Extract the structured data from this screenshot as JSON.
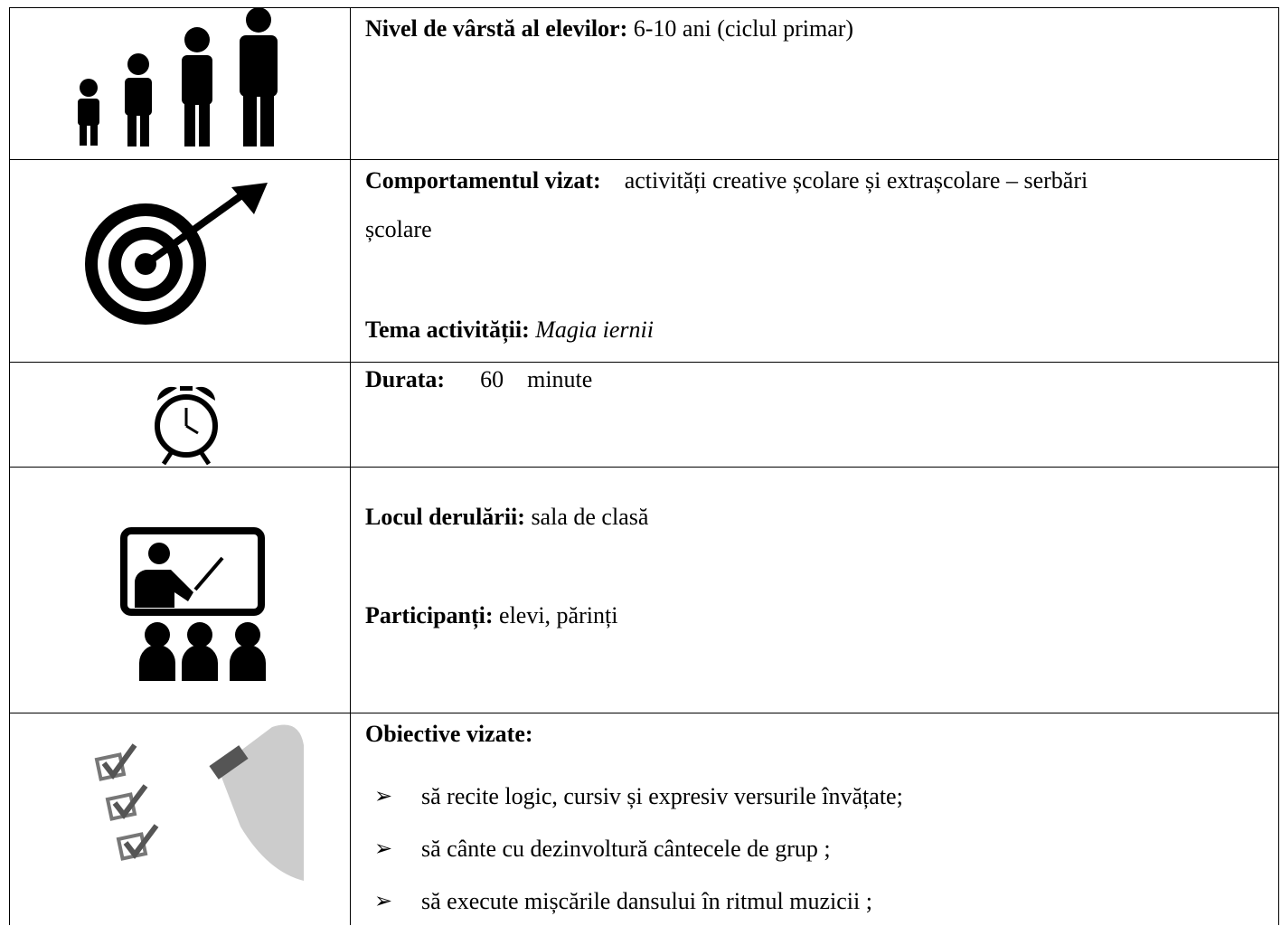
{
  "rows": [
    {
      "items": [
        {
          "label": "Nivel de vârstă al elevilor:",
          "text": "6-10 ani (ciclul primar)"
        }
      ]
    },
    {
      "items": [
        {
          "label": "Comportamentul vizat:",
          "text": "activități creative școlare și extrașcolare – serbări",
          "text_cont": "școlare"
        },
        {
          "label": "Tema activității:",
          "text": "Magia iernii"
        }
      ]
    },
    {
      "items": [
        {
          "label": "Durata:",
          "text": "60",
          "unit": "minute"
        }
      ]
    },
    {
      "items": [
        {
          "label": "Locul derulării:",
          "text": "sala de clasă"
        },
        {
          "label": "Participanți:",
          "text": "elevi, părinți"
        }
      ]
    },
    {
      "items": [
        {
          "label": "Obiective vizate:"
        }
      ],
      "bullets": [
        "să recite logic, cursiv și expresiv versurile învățate;",
        "să cânte cu dezinvoltură cântecele de grup ;",
        "să execute mișcările dansului în ritmul muzicii ;"
      ]
    }
  ]
}
